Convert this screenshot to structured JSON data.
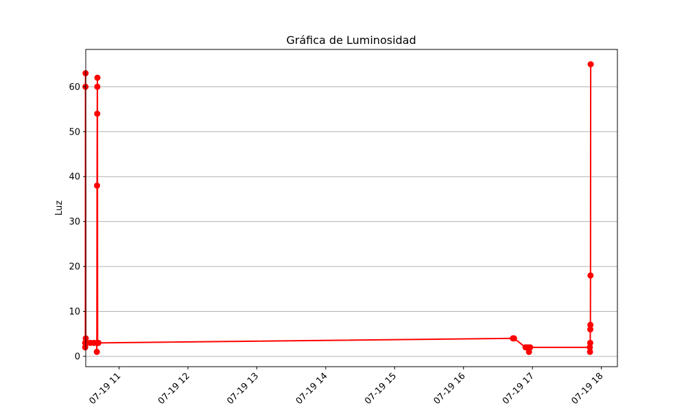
{
  "chart_data": {
    "type": "line",
    "title": "Gráfica de Luminosidad",
    "xlabel": "",
    "ylabel": "Luz",
    "grid": "horizontal",
    "xlim": [
      "2024-07-19 10:31",
      "2024-07-19 18:14"
    ],
    "ylim": [
      -2.3,
      68.3
    ],
    "yticks": [
      0,
      10,
      20,
      30,
      40,
      50,
      60
    ],
    "xticks": [
      {
        "value": "2024-07-19 11:00",
        "label": "07-19 11"
      },
      {
        "value": "2024-07-19 12:00",
        "label": "07-19 12"
      },
      {
        "value": "2024-07-19 13:00",
        "label": "07-19 13"
      },
      {
        "value": "2024-07-19 14:00",
        "label": "07-19 14"
      },
      {
        "value": "2024-07-19 15:00",
        "label": "07-19 15"
      },
      {
        "value": "2024-07-19 16:00",
        "label": "07-19 16"
      },
      {
        "value": "2024-07-19 17:00",
        "label": "07-19 17"
      },
      {
        "value": "2024-07-19 18:00",
        "label": "07-19 18"
      }
    ],
    "series": [
      {
        "color": "#ff0000",
        "marker": "circle",
        "points": [
          {
            "x": "2024-07-19 10:30:30",
            "y": 3
          },
          {
            "x": "2024-07-19 10:30:30",
            "y": 2
          },
          {
            "x": "2024-07-19 10:30:40",
            "y": 3
          },
          {
            "x": "2024-07-19 10:30:45",
            "y": 60
          },
          {
            "x": "2024-07-19 10:30:50",
            "y": 63
          },
          {
            "x": "2024-07-19 10:31:00",
            "y": 4
          },
          {
            "x": "2024-07-19 10:32:00",
            "y": 3
          },
          {
            "x": "2024-07-19 10:35:00",
            "y": 3
          },
          {
            "x": "2024-07-19 10:38:00",
            "y": 3
          },
          {
            "x": "2024-07-19 10:40:30",
            "y": 3
          },
          {
            "x": "2024-07-19 10:40:40",
            "y": 1
          },
          {
            "x": "2024-07-19 10:40:50",
            "y": 38
          },
          {
            "x": "2024-07-19 10:41:00",
            "y": 54
          },
          {
            "x": "2024-07-19 10:41:05",
            "y": 60
          },
          {
            "x": "2024-07-19 10:41:10",
            "y": 62
          },
          {
            "x": "2024-07-19 10:41:20",
            "y": 3
          },
          {
            "x": "2024-07-19 10:42:00",
            "y": 3
          },
          {
            "x": "2024-07-19 16:43:00",
            "y": 4
          },
          {
            "x": "2024-07-19 16:44:00",
            "y": 4
          },
          {
            "x": "2024-07-19 16:54:00",
            "y": 2
          },
          {
            "x": "2024-07-19 16:56:00",
            "y": 2
          },
          {
            "x": "2024-07-19 16:57:00",
            "y": 1
          },
          {
            "x": "2024-07-19 16:58:00",
            "y": 2
          },
          {
            "x": "2024-07-19 17:50:00",
            "y": 2
          },
          {
            "x": "2024-07-19 17:50:10",
            "y": 1
          },
          {
            "x": "2024-07-19 17:50:20",
            "y": 3
          },
          {
            "x": "2024-07-19 17:50:25",
            "y": 6
          },
          {
            "x": "2024-07-19 17:50:30",
            "y": 7
          },
          {
            "x": "2024-07-19 17:50:35",
            "y": 18
          },
          {
            "x": "2024-07-19 17:50:45",
            "y": 65
          }
        ]
      }
    ]
  }
}
